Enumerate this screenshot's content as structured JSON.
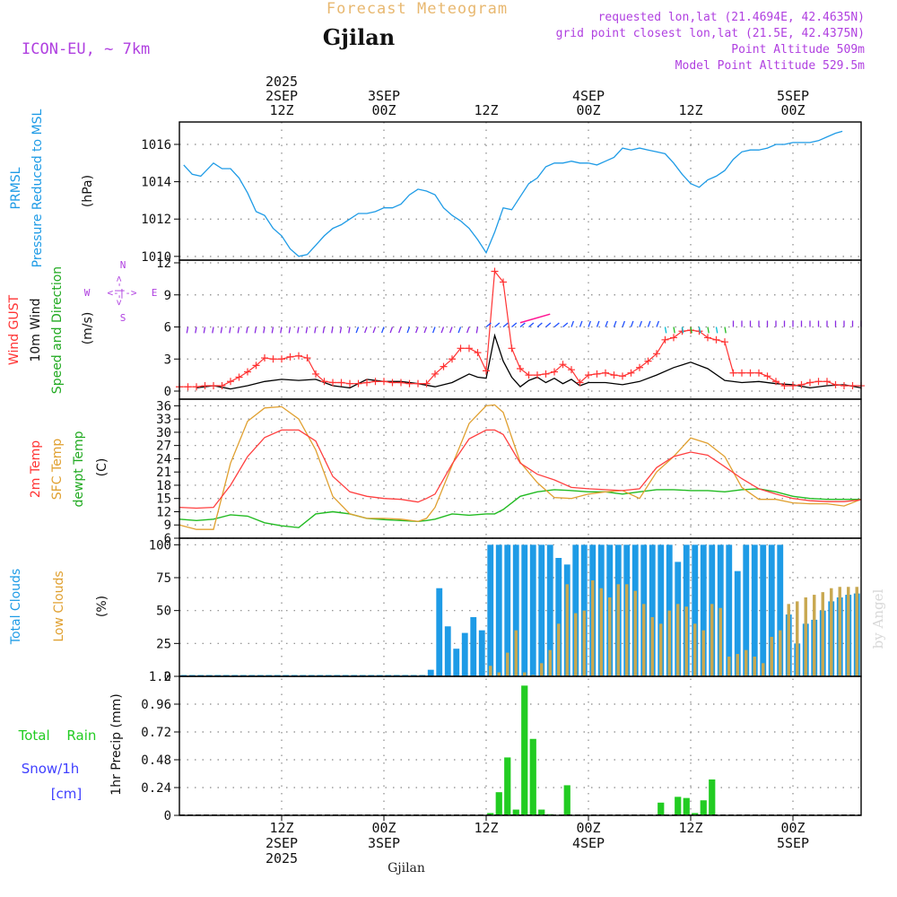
{
  "header": {
    "chart_title": "Forecast Meteogram",
    "model": "ICON-EU, ~ 7km",
    "location": "Gjilan",
    "requested": "requested lon,lat (21.4694E, 42.4635N)",
    "grid_point": "grid point closest lon,lat (21.5E, 42.4375N)",
    "point_altitude": "Point Altitude 509m",
    "model_altitude": "Model Point Altitude 529.5m",
    "footer_location": "Gjilan",
    "watermark": "by Angel"
  },
  "colors": {
    "pressure": "#1e9be6",
    "gust": "#ff3333",
    "wind": "#000000",
    "arrow_purple": "#8a2be2",
    "arrow_cyan": "#00bcd4",
    "arrow_blue": "#2050ff",
    "arrow_green": "#22bb22",
    "arrow_magenta": "#ff1493",
    "temp": "#ff4040",
    "sfc": "#e0a030",
    "dew": "#22bb22",
    "total_cloud": "#1e9be6",
    "low_cloud": "#c8a850",
    "rain": "#22cc22",
    "snow_label": "#4040ff",
    "purple_text": "#b040e0",
    "orange_text": "#e8b870",
    "grid": "#888888"
  },
  "chart_data": {
    "type": "meteogram",
    "time_axis": {
      "start_hour": 0,
      "end_hour": 80,
      "unit": "hours from 2 SEP 00Z",
      "top_labels": [
        {
          "hour": 12,
          "lines": [
            "2025",
            "2SEP",
            "12Z"
          ]
        },
        {
          "hour": 24,
          "lines": [
            "3SEP",
            "00Z"
          ]
        },
        {
          "hour": 36,
          "lines": [
            "12Z"
          ]
        },
        {
          "hour": 48,
          "lines": [
            "4SEP",
            "00Z"
          ]
        },
        {
          "hour": 60,
          "lines": [
            "12Z"
          ]
        },
        {
          "hour": 72,
          "lines": [
            "5SEP",
            "00Z"
          ]
        }
      ],
      "bottom_labels": [
        {
          "hour": 12,
          "lines": [
            "12Z",
            "2SEP",
            "2025"
          ]
        },
        {
          "hour": 24,
          "lines": [
            "00Z",
            "3SEP"
          ]
        },
        {
          "hour": 36,
          "lines": [
            "12Z"
          ]
        },
        {
          "hour": 48,
          "lines": [
            "00Z",
            "4SEP"
          ]
        },
        {
          "hour": 60,
          "lines": [
            "12Z"
          ]
        },
        {
          "hour": 72,
          "lines": [
            "00Z",
            "5SEP"
          ]
        }
      ]
    },
    "pressure": {
      "label_lines": [
        "PRMSL",
        "Pressure Reduced to MSL"
      ],
      "unit": "(hPa)",
      "ymin": 1009.8,
      "ymax": 1017.2,
      "ticks": [
        1010,
        1012,
        1014,
        1016
      ],
      "x": [
        0.5,
        1.5,
        2.5,
        4,
        5,
        6,
        7,
        8,
        9,
        10,
        11,
        12,
        13,
        14,
        15,
        16,
        17,
        18,
        19,
        20,
        21,
        22,
        23,
        24,
        25,
        26,
        27,
        28,
        29,
        30,
        31,
        32,
        33,
        34,
        35,
        36,
        37,
        38,
        39,
        40,
        41,
        42,
        43,
        44,
        45,
        46,
        47,
        48,
        49,
        50,
        51,
        52,
        53,
        54,
        55,
        56,
        57,
        58,
        59,
        60,
        61,
        62,
        63,
        64,
        65,
        66,
        67,
        68,
        69,
        70,
        71,
        72,
        73,
        74,
        75,
        76,
        77,
        77.8
      ],
      "values": [
        1014.9,
        1014.4,
        1014.3,
        1015.0,
        1014.7,
        1014.7,
        1014.2,
        1013.4,
        1012.4,
        1012.2,
        1011.5,
        1011.1,
        1010.4,
        1010.0,
        1010.1,
        1010.6,
        1011.1,
        1011.5,
        1011.7,
        1012.0,
        1012.3,
        1012.3,
        1012.4,
        1012.6,
        1012.6,
        1012.8,
        1013.3,
        1013.6,
        1013.5,
        1013.3,
        1012.6,
        1012.2,
        1011.9,
        1011.5,
        1010.9,
        1010.2,
        1011.3,
        1012.6,
        1012.5,
        1013.2,
        1013.9,
        1014.2,
        1014.8,
        1015.0,
        1015.0,
        1015.1,
        1015.0,
        1015.0,
        1014.9,
        1015.1,
        1015.3,
        1015.8,
        1015.7,
        1015.8,
        1015.7,
        1015.6,
        1015.5,
        1015.0,
        1014.4,
        1013.9,
        1013.7,
        1014.1,
        1014.3,
        1014.6,
        1015.2,
        1015.6,
        1015.7,
        1015.7,
        1015.8,
        1016.0,
        1016.0,
        1016.1,
        1016.1,
        1016.1,
        1016.2,
        1016.4,
        1016.6,
        1016.7
      ]
    },
    "wind": {
      "label_lines": [
        "Wind GUST",
        "10m Wind",
        "Speed and Direction"
      ],
      "unit": "(m/s)",
      "ymin": 0,
      "ymax": 12,
      "ticks": [
        0,
        3,
        6,
        9,
        12
      ],
      "compass": {
        "w": "W",
        "e": "E",
        "n": "N",
        "s": "S"
      },
      "gust_x": [
        0,
        1,
        2,
        3,
        4,
        5,
        6,
        7,
        8,
        9,
        10,
        11,
        12,
        13,
        14,
        15,
        16,
        17,
        18,
        19,
        20,
        21,
        22,
        23,
        24,
        25,
        26,
        27,
        28,
        29,
        30,
        31,
        32,
        33,
        34,
        35,
        36,
        37,
        38,
        39,
        40,
        41,
        42,
        43,
        44,
        45,
        46,
        47,
        48,
        49,
        50,
        51,
        52,
        53,
        54,
        55,
        56,
        57,
        58,
        59,
        60,
        61,
        62,
        63,
        64,
        65,
        66,
        67,
        68,
        69,
        70,
        71,
        72,
        73,
        74,
        75,
        76,
        77,
        78,
        79,
        80
      ],
      "gust": [
        0.4,
        0.4,
        0.4,
        0.5,
        0.5,
        0.5,
        0.9,
        1.3,
        1.8,
        2.4,
        3.1,
        3.0,
        3.0,
        3.2,
        3.3,
        3.1,
        1.6,
        0.9,
        0.8,
        0.8,
        0.7,
        0.7,
        0.8,
        0.9,
        0.9,
        0.8,
        0.8,
        0.7,
        0.7,
        0.7,
        1.6,
        2.3,
        3.0,
        4.0,
        4.0,
        3.6,
        1.9,
        11.2,
        10.2,
        4.0,
        2.1,
        1.5,
        1.5,
        1.6,
        1.8,
        2.5,
        2.0,
        0.8,
        1.5,
        1.6,
        1.7,
        1.5,
        1.4,
        1.7,
        2.2,
        2.8,
        3.5,
        4.8,
        5.0,
        5.6,
        5.7,
        5.6,
        5.0,
        4.8,
        4.6,
        1.7,
        1.7,
        1.7,
        1.7,
        1.4,
        0.9,
        0.5,
        0.5,
        0.6,
        0.8,
        0.9,
        0.9,
        0.6,
        0.5,
        0.5,
        0.5
      ],
      "speed_x": [
        2,
        4,
        6,
        8,
        10,
        12,
        14,
        16,
        18,
        20,
        22,
        24,
        26,
        28,
        30,
        32,
        34,
        35,
        36,
        37,
        38,
        39,
        40,
        41,
        42,
        43,
        44,
        45,
        46,
        47,
        48,
        50,
        52,
        54,
        56,
        58,
        60,
        62,
        64,
        66,
        68,
        70,
        72,
        74,
        76,
        78,
        80
      ],
      "speed": [
        0.3,
        0.5,
        0.2,
        0.5,
        0.9,
        1.1,
        1.0,
        1.1,
        0.5,
        0.3,
        1.1,
        0.9,
        0.9,
        0.7,
        0.4,
        0.8,
        1.6,
        1.3,
        1.2,
        5.2,
        2.8,
        1.3,
        0.4,
        1.0,
        1.3,
        0.8,
        1.2,
        0.7,
        1.1,
        0.5,
        0.8,
        0.8,
        0.6,
        0.9,
        1.5,
        2.2,
        2.7,
        2.1,
        1.0,
        0.8,
        0.9,
        0.7,
        0.6,
        0.3,
        0.5,
        0.6,
        0.3
      ]
    },
    "temperature": {
      "label_lines": [
        "2m Temp",
        "SFC Temp",
        "dewpt Temp"
      ],
      "unit": "(C)",
      "ymin": 6,
      "ymax": 37.5,
      "ticks": [
        6,
        9,
        12,
        15,
        18,
        21,
        24,
        27,
        30,
        33,
        36
      ],
      "x": [
        0,
        2,
        4,
        6,
        8,
        10,
        12,
        14,
        16,
        18,
        20,
        22,
        24,
        26,
        28,
        29,
        30,
        32,
        34,
        36,
        37,
        38,
        40,
        42,
        44,
        46,
        48,
        50,
        52,
        54,
        56,
        58,
        60,
        62,
        64,
        66,
        68,
        70,
        72,
        74,
        76,
        78,
        80
      ],
      "t2m": [
        13,
        12.8,
        13,
        18,
        24.5,
        28.8,
        30.5,
        30.5,
        28,
        20,
        16.5,
        15.5,
        15,
        14.8,
        14.2,
        15,
        16,
        22.8,
        28.5,
        30.5,
        30.5,
        29.5,
        23,
        20.5,
        19.2,
        17.5,
        17.2,
        17,
        16.8,
        17.2,
        22,
        24.5,
        25.5,
        24.8,
        22.2,
        19.5,
        17.2,
        16,
        15,
        14.5,
        14.3,
        14.3,
        14.7
      ],
      "sfc": [
        9,
        8,
        8,
        23,
        32.5,
        35.5,
        35.8,
        33,
        26,
        15.5,
        11.5,
        10.5,
        10.5,
        10.3,
        9.8,
        10.5,
        13,
        22.5,
        32,
        36,
        36.2,
        34.5,
        23.2,
        18.6,
        15.2,
        15,
        16,
        16.5,
        16.8,
        15,
        21,
        24.5,
        28.7,
        27.5,
        24.5,
        17.5,
        14.8,
        14.8,
        14,
        13.8,
        13.8,
        13.3,
        14.8
      ],
      "dew": [
        10.3,
        10,
        10.3,
        11.3,
        11,
        9.5,
        8.8,
        8.4,
        11.5,
        12,
        11.5,
        10.5,
        10.2,
        10,
        9.8,
        10,
        10.3,
        11.5,
        11.2,
        11.5,
        11.5,
        12.5,
        15.5,
        16.5,
        17,
        16.8,
        16.5,
        16.5,
        16,
        16.5,
        17,
        17,
        16.8,
        16.8,
        16.5,
        17,
        17.2,
        16.5,
        15.5,
        15,
        14.8,
        14.8,
        14.8
      ]
    },
    "clouds": {
      "label_lines": [
        "Total Clouds",
        "Low Clouds"
      ],
      "unit": "(%)",
      "ymin": 0,
      "ymax": 105,
      "ticks": [
        0,
        25,
        50,
        75,
        100
      ],
      "hours": [
        1,
        2,
        3,
        4,
        5,
        6,
        7,
        8,
        9,
        10,
        11,
        12,
        13,
        14,
        15,
        16,
        17,
        18,
        19,
        20,
        21,
        22,
        23,
        24,
        25,
        26,
        27,
        28,
        29,
        30,
        31,
        32,
        33,
        34,
        35,
        36,
        37,
        38,
        39,
        40,
        41,
        42,
        43,
        44,
        45,
        46,
        47,
        48,
        49,
        50,
        51,
        52,
        53,
        54,
        55,
        56,
        57,
        58,
        59,
        60,
        61,
        62,
        63,
        64,
        65,
        66,
        67,
        68,
        69,
        70,
        71,
        72,
        73,
        74,
        75,
        76,
        77,
        78,
        79,
        80
      ],
      "total": [
        1,
        1,
        1,
        1,
        1,
        1,
        1,
        1,
        1,
        1,
        1,
        1,
        1,
        1,
        1,
        1,
        1,
        1,
        1,
        1,
        1,
        1,
        1,
        1,
        1,
        1,
        1,
        1,
        1,
        5,
        67,
        38,
        21,
        33,
        45,
        35,
        100,
        100,
        100,
        100,
        100,
        100,
        100,
        100,
        90,
        85,
        100,
        100,
        100,
        100,
        100,
        100,
        100,
        100,
        100,
        100,
        100,
        100,
        87,
        100,
        100,
        100,
        100,
        100,
        100,
        80,
        100,
        100,
        100,
        100,
        100,
        47,
        25,
        40,
        43,
        50,
        57,
        60,
        62,
        63
      ],
      "low": [
        0,
        0,
        0,
        0,
        0,
        0,
        0,
        0,
        0,
        0,
        0,
        0,
        0,
        0,
        0,
        0,
        0,
        0,
        0,
        0,
        0,
        0,
        0,
        0,
        0,
        0,
        0,
        0,
        0,
        0,
        0,
        0,
        0,
        0,
        0,
        0,
        8,
        3,
        18,
        35,
        3,
        1,
        10,
        20,
        40,
        70,
        48,
        50,
        73,
        67,
        60,
        70,
        70,
        65,
        55,
        45,
        40,
        50,
        55,
        53,
        40,
        35,
        55,
        52,
        15,
        17,
        20,
        15,
        10,
        30,
        35,
        55,
        57,
        60,
        62,
        64,
        67,
        68,
        68,
        68
      ]
    },
    "precip": {
      "label_lines": [
        "1hr Precip (mm)"
      ],
      "side_labels": [
        "Total Rain",
        "Snow/1h",
        "[cm]"
      ],
      "ymin": 0,
      "ymax": 1.2,
      "ticks": [
        "0",
        "0.24",
        "0.48",
        "0.72",
        "0.96",
        "1.2"
      ],
      "hours": [
        37,
        38,
        39,
        40,
        41,
        42,
        43,
        44,
        46,
        57,
        59,
        60,
        61,
        62,
        63
      ],
      "values": [
        0.02,
        0.2,
        0.5,
        0.05,
        1.12,
        0.66,
        0.05,
        0.01,
        0.26,
        0.11,
        0.16,
        0.15,
        0.02,
        0.13,
        0.31
      ]
    }
  }
}
